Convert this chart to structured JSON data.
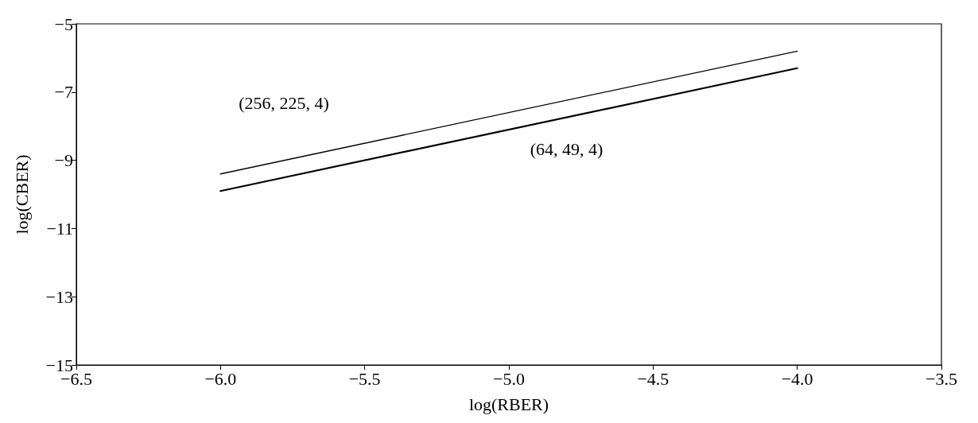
{
  "chart_data": {
    "type": "line",
    "xlabel": "log(RBER)",
    "ylabel": "log(CBER)",
    "xlim": [
      -6.5,
      -3.5
    ],
    "xticks": [
      {
        "value": -6.5,
        "label": "−6.5"
      },
      {
        "value": -6,
        "label": "−6.0"
      },
      {
        "value": -5.5,
        "label": "−5.5"
      },
      {
        "value": -5,
        "label": "−5.0"
      },
      {
        "value": -4.5,
        "label": "−4.5"
      },
      {
        "value": -4,
        "label": "−4.0"
      },
      {
        "value": -3.5,
        "label": "−3.5"
      }
    ],
    "ylim": [
      -15,
      -5
    ],
    "yticks": [
      {
        "value": -15,
        "label": "−15"
      },
      {
        "value": -13,
        "label": "−13"
      },
      {
        "value": -11,
        "label": "−11"
      },
      {
        "value": -9,
        "label": "−9"
      },
      {
        "value": -7,
        "label": "−7"
      },
      {
        "value": -5,
        "label": "−5"
      }
    ],
    "x": [
      -6,
      -4
    ],
    "series": [
      {
        "name": "(256, 225, 4)",
        "color": "#000000",
        "values": [
          -9.4,
          -5.8
        ]
      },
      {
        "name": "(64, 49, 4)",
        "color": "#000000",
        "values": [
          -9.9,
          -6.3
        ]
      }
    ],
    "grid": false,
    "marker": "none",
    "line_style": "solid"
  }
}
